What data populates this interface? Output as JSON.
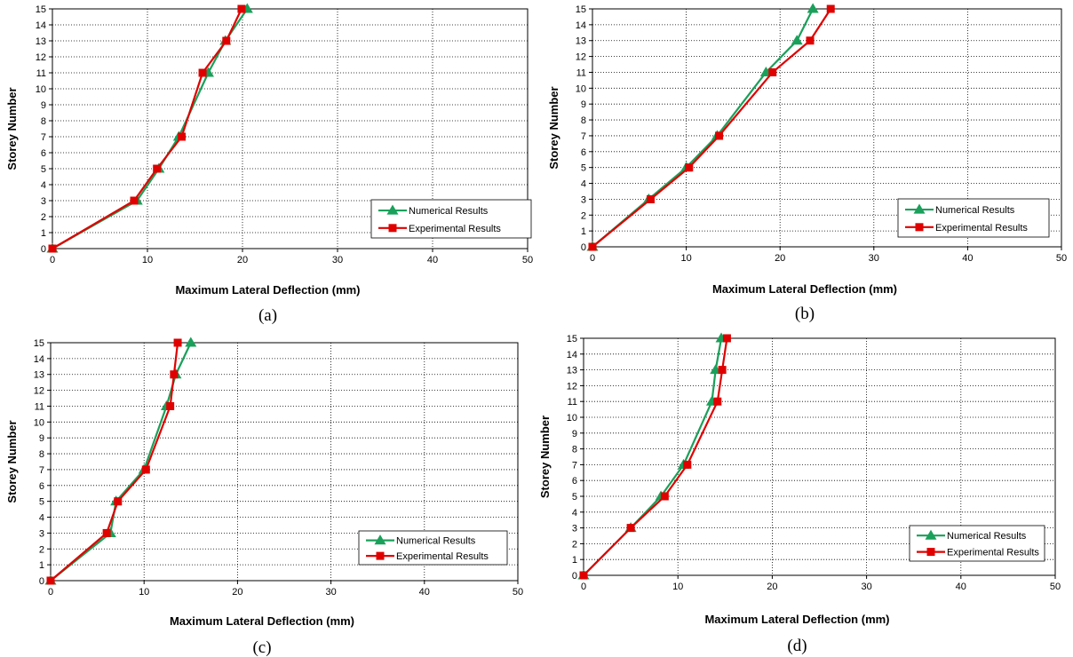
{
  "colors": {
    "numerical": "#1aa05a",
    "experimental": "#e00000",
    "axis": "#000000",
    "grid": "#000000",
    "background": "#ffffff"
  },
  "chart_data": [
    {
      "type": "line",
      "caption": "(a)",
      "xlabel": "Maximum Lateral Deflection (mm)",
      "ylabel": "Storey Number",
      "xlim": [
        0,
        50
      ],
      "ylim": [
        0,
        15
      ],
      "xticks": [
        0,
        10,
        20,
        30,
        40,
        50
      ],
      "yticks": [
        0,
        1,
        2,
        3,
        4,
        5,
        6,
        7,
        8,
        9,
        10,
        11,
        12,
        13,
        14,
        15
      ],
      "grid": true,
      "legend": "bottom-right",
      "series": [
        {
          "name": "Numerical Results",
          "marker": "triangle",
          "x": [
            0,
            8.9,
            11.2,
            13.3,
            16.4,
            18.2,
            20.5
          ],
          "y": [
            0,
            3,
            5,
            7,
            11,
            13,
            15
          ]
        },
        {
          "name": "Experimental Results",
          "marker": "square",
          "x": [
            0,
            8.6,
            11.0,
            13.6,
            15.8,
            18.3,
            19.9
          ],
          "y": [
            0,
            3,
            5,
            7,
            11,
            13,
            15
          ]
        }
      ]
    },
    {
      "type": "line",
      "caption": "(b)",
      "xlabel": "Maximum Lateral Deflection (mm)",
      "ylabel": "Storey Number",
      "xlim": [
        0,
        50
      ],
      "ylim": [
        0,
        15
      ],
      "xticks": [
        0,
        10,
        20,
        30,
        40,
        50
      ],
      "yticks": [
        0,
        1,
        2,
        3,
        4,
        5,
        6,
        7,
        8,
        9,
        10,
        11,
        12,
        13,
        14,
        15
      ],
      "grid": true,
      "legend": "bottom-right",
      "series": [
        {
          "name": "Numerical Results",
          "marker": "triangle",
          "x": [
            0,
            6.0,
            10.0,
            13.3,
            18.5,
            21.8,
            23.5
          ],
          "y": [
            0,
            3,
            5,
            7,
            11,
            13,
            15
          ]
        },
        {
          "name": "Experimental Results",
          "marker": "square",
          "x": [
            0,
            6.2,
            10.3,
            13.5,
            19.2,
            23.2,
            25.4
          ],
          "y": [
            0,
            3,
            5,
            7,
            11,
            13,
            15
          ]
        }
      ]
    },
    {
      "type": "line",
      "caption": "(c)",
      "xlabel": "Maximum Lateral Deflection (mm)",
      "ylabel": "Storey Number",
      "xlim": [
        0,
        50
      ],
      "ylim": [
        0,
        15
      ],
      "xticks": [
        0,
        10,
        20,
        30,
        40,
        50
      ],
      "yticks": [
        0,
        1,
        2,
        3,
        4,
        5,
        6,
        7,
        8,
        9,
        10,
        11,
        12,
        13,
        14,
        15
      ],
      "grid": true,
      "legend": "bottom-right",
      "series": [
        {
          "name": "Numerical Results",
          "marker": "triangle",
          "x": [
            0,
            6.4,
            7.0,
            10.0,
            12.4,
            13.4,
            15.0
          ],
          "y": [
            0,
            3,
            5,
            7,
            11,
            13,
            15
          ]
        },
        {
          "name": "Experimental Results",
          "marker": "square",
          "x": [
            0,
            6.0,
            7.2,
            10.2,
            12.8,
            13.2,
            13.6
          ],
          "y": [
            0,
            3,
            5,
            7,
            11,
            13,
            15
          ]
        }
      ]
    },
    {
      "type": "line",
      "caption": "(d)",
      "xlabel": "Maximum Lateral Deflection (mm)",
      "ylabel": "Storey Number",
      "xlim": [
        0,
        50
      ],
      "ylim": [
        0,
        15
      ],
      "xticks": [
        0,
        10,
        20,
        30,
        40,
        50
      ],
      "yticks": [
        0,
        1,
        2,
        3,
        4,
        5,
        6,
        7,
        8,
        9,
        10,
        11,
        12,
        13,
        14,
        15
      ],
      "grid": true,
      "legend": "bottom-right",
      "series": [
        {
          "name": "Numerical Results",
          "marker": "triangle",
          "x": [
            0,
            5.0,
            8.2,
            10.6,
            13.6,
            14.0,
            14.6
          ],
          "y": [
            0,
            3,
            5,
            7,
            11,
            13,
            15
          ]
        },
        {
          "name": "Experimental Results",
          "marker": "square",
          "x": [
            0,
            5.0,
            8.6,
            11.0,
            14.2,
            14.7,
            15.2
          ],
          "y": [
            0,
            3,
            5,
            7,
            11,
            13,
            15
          ]
        }
      ]
    }
  ]
}
